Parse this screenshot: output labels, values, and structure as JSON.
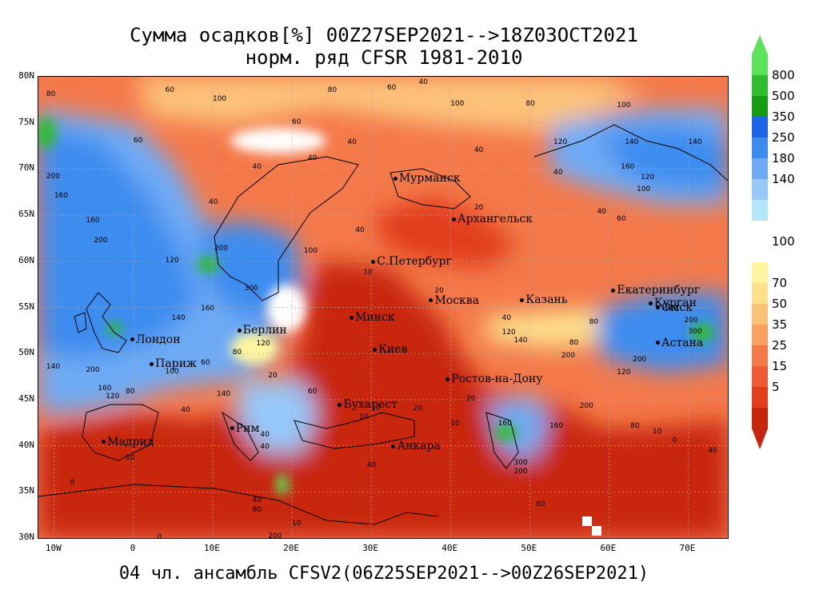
{
  "title_line1": "Сумма осадков[%] 00Z27SEP2021-->18Z03OCT2021",
  "title_line2": "норм. ряд CFSR 1981-2010",
  "footer": "04 чл. ансамбль CFSV2(06Z25SEP2021-->00Z26SEP2021)",
  "lat_labels": [
    "80N",
    "75N",
    "70N",
    "65N",
    "60N",
    "55N",
    "50N",
    "45N",
    "40N",
    "35N",
    "30N"
  ],
  "lon_labels": [
    "10W",
    "0",
    "10E",
    "20E",
    "30E",
    "40E",
    "50E",
    "60E",
    "70E"
  ],
  "lat_values": [
    80,
    75,
    70,
    65,
    60,
    55,
    50,
    45,
    40,
    35,
    30
  ],
  "lon_values": [
    -10,
    0,
    10,
    20,
    30,
    40,
    50,
    60,
    70
  ],
  "map_extent": {
    "lon": [
      -12,
      75
    ],
    "lat": [
      30,
      80
    ]
  },
  "cities": [
    {
      "name": "Мурманск",
      "lon": 33.1,
      "lat": 68.97
    },
    {
      "name": "Архангельск",
      "lon": 40.5,
      "lat": 64.54
    },
    {
      "name": "С.Петербург",
      "lon": 30.3,
      "lat": 59.94
    },
    {
      "name": "Москва",
      "lon": 37.6,
      "lat": 55.75
    },
    {
      "name": "Казань",
      "lon": 49.1,
      "lat": 55.79
    },
    {
      "name": "Екатеринбург",
      "lon": 60.6,
      "lat": 56.84
    },
    {
      "name": "Курган",
      "lon": 65.3,
      "lat": 55.44
    },
    {
      "name": "Омск",
      "lon": 73.4,
      "lat": 54.98
    },
    {
      "name": "Астана",
      "lon": 71.4,
      "lat": 51.16
    },
    {
      "name": "Минск",
      "lon": 27.56,
      "lat": 53.9
    },
    {
      "name": "Киев",
      "lon": 30.5,
      "lat": 50.45
    },
    {
      "name": "Берлин",
      "lon": 13.4,
      "lat": 52.52
    },
    {
      "name": "Лондон",
      "lon": -0.12,
      "lat": 51.5
    },
    {
      "name": "Париж",
      "lon": 2.35,
      "lat": 48.86
    },
    {
      "name": "Ростов-на-Дону",
      "lon": 39.7,
      "lat": 47.23
    },
    {
      "name": "Бухарест",
      "lon": 26.1,
      "lat": 44.43
    },
    {
      "name": "Рим",
      "lon": 12.5,
      "lat": 41.9
    },
    {
      "name": "Мадрид",
      "lon": -3.7,
      "lat": 40.42
    },
    {
      "name": "Анкара",
      "lon": 32.86,
      "lat": 39.93
    }
  ],
  "contour_labels": [
    {
      "t": "80",
      "lon": -11,
      "lat": 78.5
    },
    {
      "t": "60",
      "lon": 4,
      "lat": 79
    },
    {
      "t": "100",
      "lon": 10,
      "lat": 78
    },
    {
      "t": "80",
      "lon": 24.5,
      "lat": 79
    },
    {
      "t": "60",
      "lon": 32,
      "lat": 79.2
    },
    {
      "t": "40",
      "lon": 36,
      "lat": 79.8
    },
    {
      "t": "100",
      "lon": 40,
      "lat": 77.5
    },
    {
      "t": "80",
      "lon": 49.5,
      "lat": 77.5
    },
    {
      "t": "100",
      "lon": 61,
      "lat": 77.3
    },
    {
      "t": "60",
      "lon": 20,
      "lat": 75.5
    },
    {
      "t": "60",
      "lon": 0,
      "lat": 73.5
    },
    {
      "t": "40",
      "lon": 15,
      "lat": 70.6
    },
    {
      "t": "40",
      "lon": 22,
      "lat": 71.6
    },
    {
      "t": "40",
      "lon": 27,
      "lat": 73.3
    },
    {
      "t": "40",
      "lon": 43,
      "lat": 72.5
    },
    {
      "t": "200",
      "lon": -11,
      "lat": 69.6
    },
    {
      "t": "160",
      "lon": -10,
      "lat": 67.5
    },
    {
      "t": "160",
      "lon": -6,
      "lat": 64.8
    },
    {
      "t": "200",
      "lon": -5,
      "lat": 62.7
    },
    {
      "t": "200",
      "lon": 10.2,
      "lat": 61.8
    },
    {
      "t": "120",
      "lon": 4,
      "lat": 60.5
    },
    {
      "t": "300",
      "lon": 14,
      "lat": 57.5
    },
    {
      "t": "160",
      "lon": 8.5,
      "lat": 55.3
    },
    {
      "t": "140",
      "lon": 4.8,
      "lat": 54.3
    },
    {
      "t": "100",
      "lon": 21.5,
      "lat": 61.5
    },
    {
      "t": "40",
      "lon": 9.5,
      "lat": 66.8
    },
    {
      "t": "40",
      "lon": 28,
      "lat": 63.8
    },
    {
      "t": "10",
      "lon": 29,
      "lat": 59.2
    },
    {
      "t": "20",
      "lon": 38,
      "lat": 57.2
    },
    {
      "t": "40",
      "lon": 46.5,
      "lat": 54.3
    },
    {
      "t": "20",
      "lon": 43,
      "lat": 66.2
    },
    {
      "t": "40",
      "lon": 53,
      "lat": 70
    },
    {
      "t": "40",
      "lon": 58.5,
      "lat": 65.8
    },
    {
      "t": "120",
      "lon": 53,
      "lat": 73.3
    },
    {
      "t": "140",
      "lon": 62,
      "lat": 73.3
    },
    {
      "t": "160",
      "lon": 61.5,
      "lat": 70.6
    },
    {
      "t": "120",
      "lon": 64,
      "lat": 69.5
    },
    {
      "t": "100",
      "lon": 63.5,
      "lat": 68.2
    },
    {
      "t": "140",
      "lon": 70,
      "lat": 73.3
    },
    {
      "t": "60",
      "lon": 61,
      "lat": 65
    },
    {
      "t": "80",
      "lon": 55,
      "lat": 51.6
    },
    {
      "t": "120",
      "lon": 46.5,
      "lat": 52.7
    },
    {
      "t": "140",
      "lon": 48,
      "lat": 51.8
    },
    {
      "t": "200",
      "lon": 54,
      "lat": 50.2
    },
    {
      "t": "200",
      "lon": 63,
      "lat": 49.8
    },
    {
      "t": "120",
      "lon": 61,
      "lat": 48.4
    },
    {
      "t": "200",
      "lon": 56.3,
      "lat": 44.7
    },
    {
      "t": "160",
      "lon": 52.5,
      "lat": 42.6
    },
    {
      "t": "80",
      "lon": 62.7,
      "lat": 42.6
    },
    {
      "t": "10",
      "lon": 65.5,
      "lat": 42
    },
    {
      "t": "0",
      "lon": 68,
      "lat": 41
    },
    {
      "t": "40",
      "lon": 72.5,
      "lat": 39.9
    },
    {
      "t": "160",
      "lon": 46,
      "lat": 42.8
    },
    {
      "t": "300",
      "lon": 48,
      "lat": 38.6
    },
    {
      "t": "200",
      "lon": 48,
      "lat": 37.6
    },
    {
      "t": "80",
      "lon": 50.8,
      "lat": 34.1
    },
    {
      "t": "10",
      "lon": 40,
      "lat": 42.8
    },
    {
      "t": "20",
      "lon": 35.3,
      "lat": 44.5
    },
    {
      "t": "10",
      "lon": 28.5,
      "lat": 43.5
    },
    {
      "t": "60",
      "lon": 22,
      "lat": 46.3
    },
    {
      "t": "140",
      "lon": 10.5,
      "lat": 46
    },
    {
      "t": "120",
      "lon": -3.5,
      "lat": 45.8
    },
    {
      "t": "160",
      "lon": -4.5,
      "lat": 46.6
    },
    {
      "t": "80",
      "lon": -1,
      "lat": 46.3
    },
    {
      "t": "200",
      "lon": -6,
      "lat": 48.6
    },
    {
      "t": "140",
      "lon": -11,
      "lat": 49
    },
    {
      "t": "100",
      "lon": 4,
      "lat": 48.5
    },
    {
      "t": "60",
      "lon": 8.5,
      "lat": 49.4
    },
    {
      "t": "120",
      "lon": 15.5,
      "lat": 51.5
    },
    {
      "t": "80",
      "lon": 12.5,
      "lat": 50.5
    },
    {
      "t": "20",
      "lon": 17,
      "lat": 48
    },
    {
      "t": "40",
      "lon": 6,
      "lat": 44.3
    },
    {
      "t": "40",
      "lon": 16,
      "lat": 41.6
    },
    {
      "t": "40",
      "lon": 16,
      "lat": 40.3
    },
    {
      "t": "10",
      "lon": -1,
      "lat": 39.1
    },
    {
      "t": "0",
      "lon": -8,
      "lat": 36.4
    },
    {
      "t": "10",
      "lon": 30,
      "lat": 44.5
    },
    {
      "t": "40",
      "lon": 15,
      "lat": 34.5
    },
    {
      "t": "80",
      "lon": 15,
      "lat": 33.5
    },
    {
      "t": "200",
      "lon": 17,
      "lat": 30.6
    },
    {
      "t": "10",
      "lon": 20,
      "lat": 32
    },
    {
      "t": "0",
      "lon": 3,
      "lat": 30.5
    },
    {
      "t": "40",
      "lon": 29.5,
      "lat": 38.3
    },
    {
      "t": "20",
      "lon": 42,
      "lat": 45.5
    },
    {
      "t": "80",
      "lon": 57.5,
      "lat": 53.8
    },
    {
      "t": "120",
      "lon": 67,
      "lat": 55.3
    },
    {
      "t": "200",
      "lon": 69.5,
      "lat": 54
    },
    {
      "t": "300",
      "lon": 70,
      "lat": 52.8
    }
  ],
  "legend": {
    "top_labels": [
      "800",
      "500",
      "350",
      "250",
      "180",
      "140"
    ],
    "mid_label": "100",
    "bottom_labels": [
      "70",
      "50",
      "35",
      "25",
      "15",
      "5"
    ],
    "colors_upper": [
      "#5ce35c",
      "#2fbd2f",
      "#149c14",
      "#1e64e6",
      "#3c8cf0",
      "#6eaaf5",
      "#96c8fa",
      "#b4e6fa"
    ],
    "colors_lower": [
      "#fff5a0",
      "#fde08c",
      "#fcc27a",
      "#f9a060",
      "#f4794a",
      "#ee5a33",
      "#e23d1c",
      "#c8260c"
    ]
  }
}
